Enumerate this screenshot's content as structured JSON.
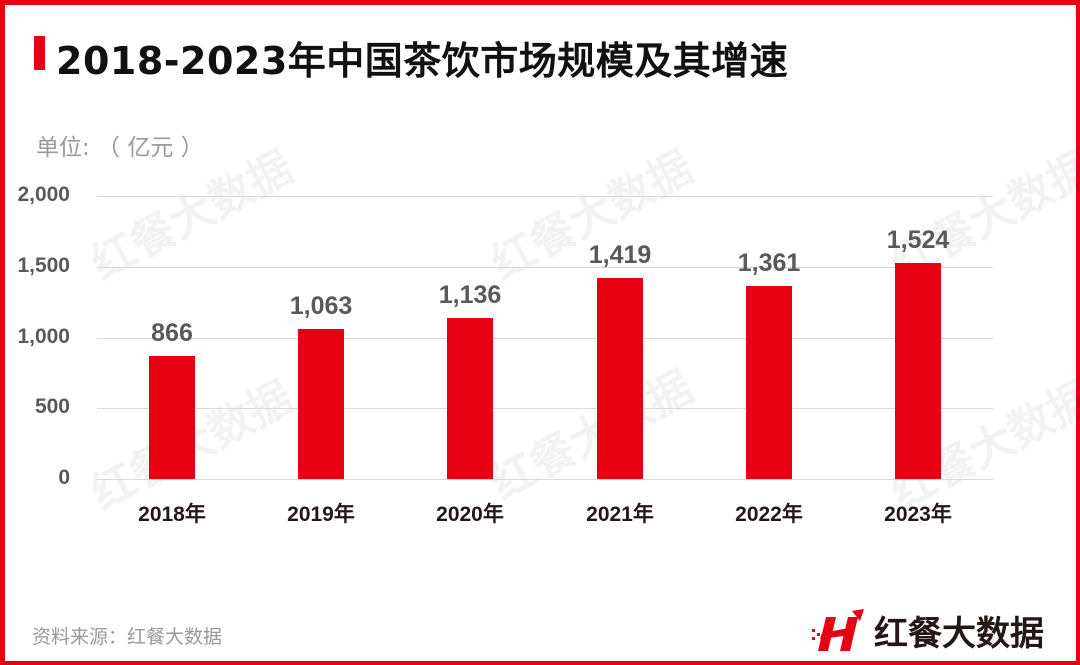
{
  "header": {
    "title": "2018-2023年中国茶饮市场规模及其增速",
    "unit": "单位: （ 亿元 ）"
  },
  "footer": {
    "source": "资料来源：红餐大数据",
    "logo_text": "红餐大数据",
    "logo_icon": "hongcan-h-logo-icon"
  },
  "watermark": "红餐大数据",
  "colors": {
    "bar": "#e60012",
    "border": "#e60012",
    "value_label": "#595959",
    "grid": "#d9d9d9"
  },
  "chart_data": {
    "type": "bar",
    "title": "2018-2023年中国茶饮市场规模及其增速",
    "xlabel": "",
    "ylabel": "单位: （ 亿元 ）",
    "categories": [
      "2018年",
      "2019年",
      "2020年",
      "2021年",
      "2022年",
      "2023年"
    ],
    "values": [
      866,
      1063,
      1136,
      1419,
      1361,
      1524
    ],
    "value_labels": [
      "866",
      "1,063",
      "1,136",
      "1,419",
      "1,361",
      "1,524"
    ],
    "ylim": [
      0,
      2000
    ],
    "yticks": [
      0,
      500,
      1000,
      1500,
      2000
    ],
    "ytick_labels": [
      "0",
      "500",
      "1,000",
      "1,500",
      "2,000"
    ],
    "grid": true,
    "legend": null
  }
}
